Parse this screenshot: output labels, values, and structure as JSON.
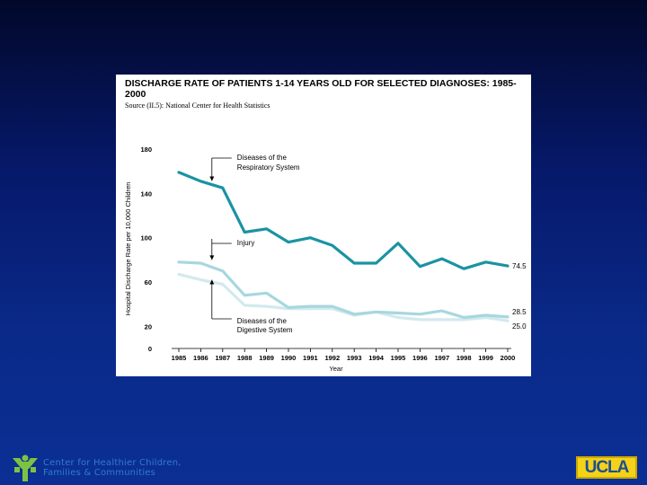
{
  "chart_data": {
    "type": "line",
    "title": "DISCHARGE RATE OF PATIENTS 1-14 YEARS OLD FOR SELECTED DIAGNOSES:  1985-2000",
    "source": "Source (II.5):  National Center for Health Statistics",
    "xlabel": "Year",
    "ylabel": "Hospital Discharge Rate per 10,000 Children",
    "ylim": [
      0,
      180
    ],
    "y_ticks": [
      "180",
      "140",
      "100",
      "60",
      "20",
      "0"
    ],
    "x": [
      "1985",
      "1986",
      "1987",
      "1988",
      "1989",
      "1990",
      "1991",
      "1992",
      "1993",
      "1994",
      "1995",
      "1996",
      "1997",
      "1998",
      "1999",
      "2000"
    ],
    "series": [
      {
        "name": "Diseases of the Respiratory System",
        "color": "#1a93a3",
        "values": [
          159,
          151,
          145,
          105,
          108,
          96,
          100,
          93,
          77,
          77,
          95,
          74,
          81,
          72,
          78,
          74.5
        ],
        "end_label": "74.5"
      },
      {
        "name": "Injury",
        "color": "#a7d7df",
        "values": [
          78,
          77,
          70,
          48,
          50,
          37,
          38,
          38,
          31,
          33,
          32,
          31,
          34,
          28,
          30,
          28.5
        ],
        "end_label": "28.5"
      },
      {
        "name": "Diseases of the Digestive System",
        "color": "#d2eaee",
        "values": [
          67,
          62,
          58,
          39,
          38,
          36,
          36,
          36,
          30,
          33,
          28,
          26,
          26,
          26,
          28,
          25.0
        ],
        "end_label": "25.0"
      }
    ],
    "annotations": {
      "respiratory": [
        "Diseases of the",
        "Respiratory System"
      ],
      "injury": [
        "Injury"
      ],
      "digestive": [
        "Diseases of the",
        "Digestive System"
      ]
    }
  },
  "footer": {
    "org_line1": "Center for Healthier Children,",
    "org_line2": "Families & Communities",
    "ucla": "UCLA"
  },
  "colors": {
    "respiratory": "#1a93a3",
    "injury": "#a7d7df",
    "digestive": "#d2eaee",
    "footer_text": "#2e7ccf",
    "ucla_gold": "#f4d21a",
    "ucla_blue": "#1d4f8f"
  }
}
